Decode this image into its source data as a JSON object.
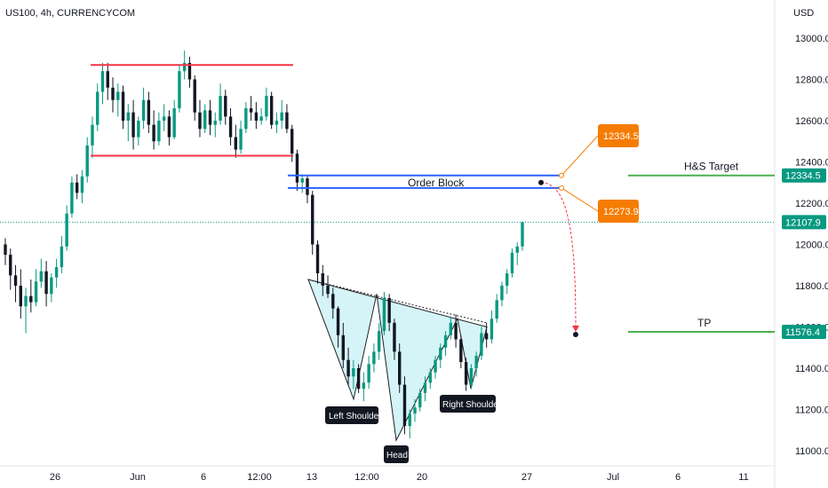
{
  "header": {
    "title": "US100, 4h, CURRENCYCOM"
  },
  "price_axis": {
    "currency": "USD",
    "ticks": [
      "13000.0",
      "12800.0",
      "12600.0",
      "12400.0",
      "12200.0",
      "12000.0",
      "11800.0",
      "11600.0",
      "11400.0",
      "11200.0",
      "11000.0"
    ]
  },
  "time_axis": {
    "ticks": [
      "26",
      "Jun",
      "6",
      "12:00",
      "13",
      "12:00",
      "20",
      "27",
      "Jul",
      "6",
      "11"
    ]
  },
  "price_labels": [
    {
      "text": "12334.5",
      "color": "#089981"
    },
    {
      "text": "12107.9",
      "color": "#089981"
    },
    {
      "text": "11576.4",
      "color": "#089981"
    }
  ],
  "annotations": {
    "order_block": "Order Block",
    "hs_target": "H&S Target",
    "tp": "TP",
    "left_shoulder": "Left Shoulder",
    "head": "Head",
    "right_shoulder": "Right Shoulder",
    "callout_top": "12334.5",
    "callout_bottom": "12273.9"
  },
  "colors": {
    "up": "#089981",
    "down": "#131722",
    "resistance": "#f23645",
    "order_block": "#2962ff",
    "target_line": "#4caf50",
    "callout": "#f57c00",
    "pattern_fill": "#b2ebf2",
    "projection": "#f23645"
  },
  "chart_data": {
    "type": "candlestick",
    "title": "US100, 4h, CURRENCYCOM",
    "ylabel": "USD",
    "ylim": [
      10950,
      13100
    ],
    "x_ticks": [
      "26",
      "Jun",
      "6",
      "12:00",
      "13",
      "12:00",
      "20",
      "27",
      "Jul",
      "6",
      "11"
    ],
    "levels": [
      {
        "name": "resistance-top",
        "price": 12870
      },
      {
        "name": "support-range-bottom",
        "price": 12430
      },
      {
        "name": "order-block-top",
        "price": 12334.5
      },
      {
        "name": "order-block-bottom",
        "price": 12273.9
      },
      {
        "name": "H&S Target",
        "price": 12334.5
      },
      {
        "name": "TP",
        "price": 11576.4
      },
      {
        "name": "last-price",
        "price": 12107.9
      }
    ],
    "pattern": {
      "type": "inverse head and shoulders",
      "left_shoulder": 11250,
      "head": 11050,
      "right_shoulder": 11300,
      "neckline_start": 11830,
      "neckline_end": 11640
    },
    "candles": [
      [
        12000,
        12030,
        11900,
        11950
      ],
      [
        11950,
        11980,
        11780,
        11850
      ],
      [
        11850,
        11900,
        11720,
        11800
      ],
      [
        11800,
        11880,
        11640,
        11700
      ],
      [
        11700,
        11790,
        11570,
        11750
      ],
      [
        11750,
        11830,
        11670,
        11720
      ],
      [
        11720,
        11880,
        11700,
        11820
      ],
      [
        11820,
        11930,
        11790,
        11870
      ],
      [
        11870,
        11920,
        11700,
        11760
      ],
      [
        11760,
        11860,
        11720,
        11840
      ],
      [
        11840,
        11930,
        11790,
        11890
      ],
      [
        11890,
        12040,
        11860,
        11990
      ],
      [
        11990,
        12190,
        11970,
        12150
      ],
      [
        12150,
        12330,
        12130,
        12300
      ],
      [
        12300,
        12340,
        12220,
        12250
      ],
      [
        12250,
        12360,
        12200,
        12330
      ],
      [
        12330,
        12520,
        12300,
        12480
      ],
      [
        12480,
        12620,
        12420,
        12580
      ],
      [
        12580,
        12780,
        12550,
        12740
      ],
      [
        12740,
        12880,
        12680,
        12840
      ],
      [
        12840,
        12880,
        12700,
        12760
      ],
      [
        12760,
        12810,
        12640,
        12700
      ],
      [
        12700,
        12780,
        12620,
        12740
      ],
      [
        12740,
        12770,
        12560,
        12600
      ],
      [
        12600,
        12680,
        12500,
        12640
      ],
      [
        12640,
        12700,
        12460,
        12520
      ],
      [
        12520,
        12620,
        12480,
        12600
      ],
      [
        12600,
        12760,
        12560,
        12700
      ],
      [
        12700,
        12740,
        12540,
        12580
      ],
      [
        12580,
        12650,
        12460,
        12500
      ],
      [
        12500,
        12640,
        12480,
        12600
      ],
      [
        12600,
        12680,
        12550,
        12620
      ],
      [
        12620,
        12650,
        12480,
        12520
      ],
      [
        12520,
        12700,
        12510,
        12660
      ],
      [
        12660,
        12870,
        12640,
        12840
      ],
      [
        12840,
        12940,
        12800,
        12880
      ],
      [
        12880,
        12910,
        12760,
        12800
      ],
      [
        12800,
        12820,
        12600,
        12640
      ],
      [
        12640,
        12700,
        12520,
        12560
      ],
      [
        12560,
        12680,
        12540,
        12650
      ],
      [
        12650,
        12700,
        12530,
        12580
      ],
      [
        12580,
        12640,
        12520,
        12600
      ],
      [
        12600,
        12780,
        12580,
        12720
      ],
      [
        12720,
        12750,
        12580,
        12620
      ],
      [
        12620,
        12660,
        12480,
        12520
      ],
      [
        12520,
        12580,
        12420,
        12460
      ],
      [
        12460,
        12600,
        12440,
        12560
      ],
      [
        12560,
        12690,
        12540,
        12660
      ],
      [
        12660,
        12720,
        12600,
        12640
      ],
      [
        12640,
        12690,
        12560,
        12600
      ],
      [
        12600,
        12660,
        12580,
        12620
      ],
      [
        12620,
        12760,
        12600,
        12720
      ],
      [
        12720,
        12740,
        12560,
        12580
      ],
      [
        12580,
        12640,
        12540,
        12600
      ],
      [
        12600,
        12700,
        12560,
        12640
      ],
      [
        12640,
        12680,
        12540,
        12560
      ],
      [
        12560,
        12580,
        12400,
        12440
      ],
      [
        12440,
        12460,
        12260,
        12300
      ],
      [
        12300,
        12340,
        12250,
        12320
      ],
      [
        12320,
        12330,
        12200,
        12240
      ],
      [
        12240,
        12260,
        11950,
        12000
      ],
      [
        12000,
        12020,
        11810,
        11860
      ],
      [
        11860,
        11900,
        11750,
        11800
      ],
      [
        11800,
        11850,
        11740,
        11760
      ],
      [
        11760,
        11790,
        11640,
        11690
      ],
      [
        11690,
        11700,
        11500,
        11560
      ],
      [
        11560,
        11620,
        11400,
        11440
      ],
      [
        11440,
        11500,
        11320,
        11360
      ],
      [
        11360,
        11440,
        11300,
        11400
      ],
      [
        11400,
        11420,
        11280,
        11300
      ],
      [
        11300,
        11380,
        11240,
        11330
      ],
      [
        11330,
        11460,
        11300,
        11420
      ],
      [
        11420,
        11520,
        11380,
        11480
      ],
      [
        11480,
        11620,
        11440,
        11580
      ],
      [
        11580,
        11770,
        11560,
        11740
      ],
      [
        11740,
        11760,
        11580,
        11620
      ],
      [
        11620,
        11640,
        11440,
        11480
      ],
      [
        11480,
        11520,
        11280,
        11320
      ],
      [
        11320,
        11360,
        11080,
        11120
      ],
      [
        11120,
        11200,
        11060,
        11180
      ],
      [
        11180,
        11250,
        11140,
        11210
      ],
      [
        11210,
        11300,
        11190,
        11280
      ],
      [
        11280,
        11360,
        11240,
        11330
      ],
      [
        11330,
        11400,
        11300,
        11380
      ],
      [
        11380,
        11460,
        11350,
        11440
      ],
      [
        11440,
        11520,
        11400,
        11500
      ],
      [
        11500,
        11580,
        11460,
        11560
      ],
      [
        11560,
        11650,
        11540,
        11620
      ],
      [
        11620,
        11660,
        11500,
        11540
      ],
      [
        11540,
        11560,
        11400,
        11430
      ],
      [
        11430,
        11450,
        11290,
        11320
      ],
      [
        11320,
        11420,
        11300,
        11400
      ],
      [
        11400,
        11480,
        11360,
        11460
      ],
      [
        11460,
        11600,
        11440,
        11570
      ],
      [
        11570,
        11620,
        11500,
        11540
      ],
      [
        11540,
        11680,
        11520,
        11640
      ],
      [
        11640,
        11760,
        11620,
        11730
      ],
      [
        11730,
        11820,
        11700,
        11800
      ],
      [
        11800,
        11880,
        11760,
        11860
      ],
      [
        11860,
        11980,
        11840,
        11960
      ],
      [
        11960,
        12010,
        11900,
        11990
      ],
      [
        11990,
        12110,
        11970,
        12107.9
      ]
    ]
  }
}
